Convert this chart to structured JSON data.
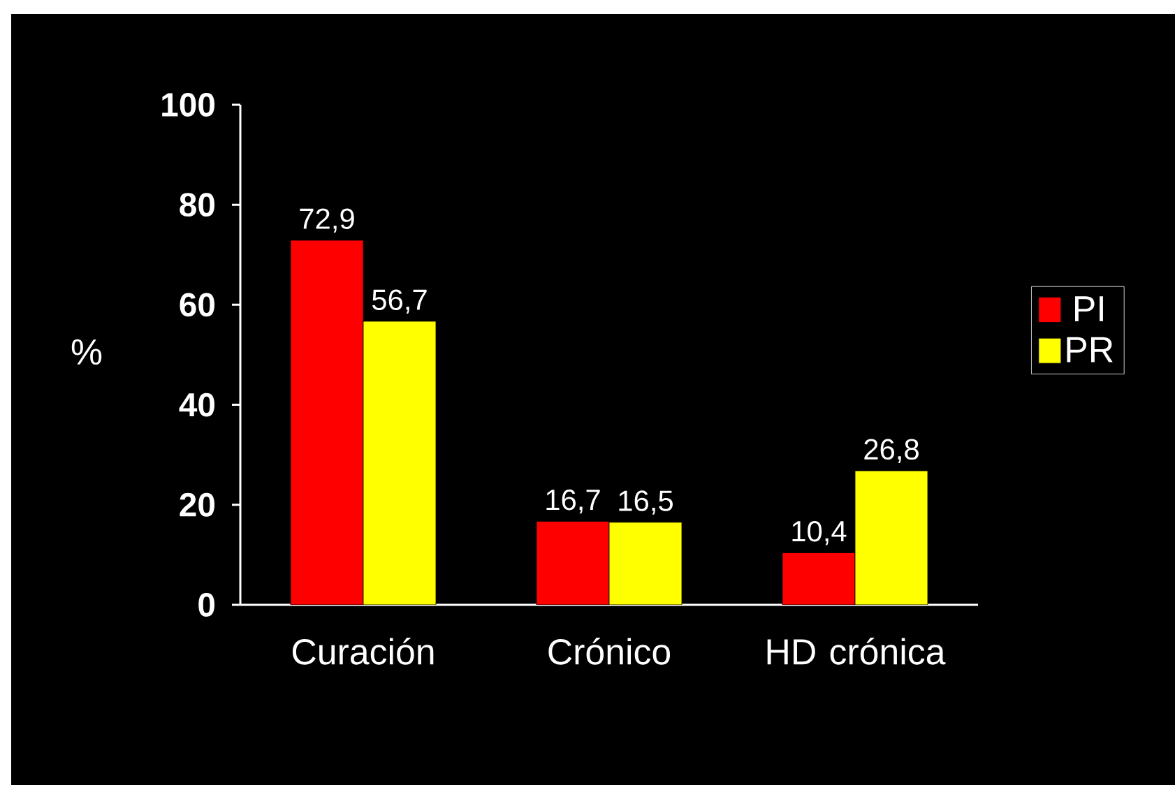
{
  "chart_data": {
    "type": "bar",
    "ylabel": "%",
    "categories": [
      "Curación",
      "Crónico",
      "HD crónica"
    ],
    "series": [
      {
        "name": "PI",
        "color": "#ff0000",
        "values": [
          72.9,
          16.7,
          10.4
        ],
        "value_labels": [
          "72,9",
          "16,7",
          "10,4"
        ]
      },
      {
        "name": "PR",
        "color": "#ffff00",
        "values": [
          56.7,
          16.5,
          26.8
        ],
        "value_labels": [
          "56,7",
          "16,5",
          "26,8"
        ]
      }
    ],
    "ylim": [
      0,
      100
    ],
    "yticks": [
      0,
      20,
      40,
      60,
      80,
      100
    ],
    "grid": false,
    "legend": "right"
  }
}
